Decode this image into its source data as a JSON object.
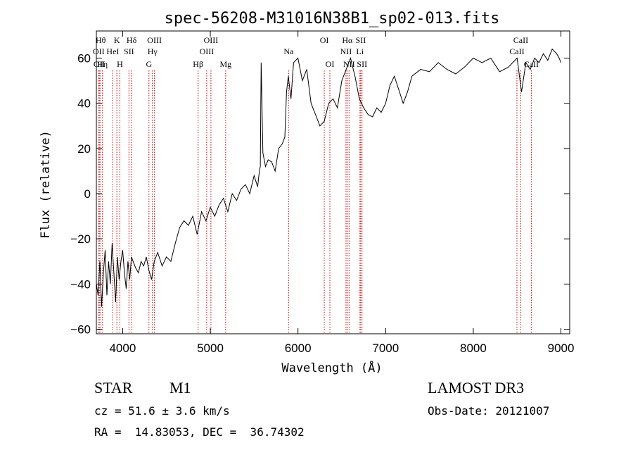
{
  "chart_data": {
    "type": "line",
    "title": "spec-56208-M31016N38B1_sp02-013.fits",
    "xlabel": "Wavelength (Å)",
    "ylabel": "Flux (relative)",
    "xlim": [
      3700,
      9100
    ],
    "ylim": [
      -62,
      72
    ],
    "xticks": [
      4000,
      5000,
      6000,
      7000,
      8000,
      9000
    ],
    "yticks": [
      -60,
      -40,
      -20,
      0,
      20,
      40,
      60
    ],
    "xtick_labels": [
      "4000",
      "5000",
      "6000",
      "7000",
      "8000",
      "9000"
    ],
    "ytick_labels": [
      "−60",
      "−40",
      "−20",
      "0",
      "20",
      "40",
      "60"
    ],
    "line_color": "#000000",
    "marker_color": "#cc0000",
    "series": [
      {
        "name": "flux",
        "x": [
          3700,
          3720,
          3740,
          3760,
          3780,
          3800,
          3820,
          3840,
          3860,
          3880,
          3900,
          3920,
          3940,
          3960,
          3980,
          4000,
          4020,
          4040,
          4060,
          4080,
          4100,
          4120,
          4150,
          4180,
          4210,
          4240,
          4270,
          4300,
          4330,
          4360,
          4400,
          4450,
          4500,
          4550,
          4600,
          4650,
          4700,
          4750,
          4800,
          4850,
          4900,
          4950,
          5000,
          5050,
          5100,
          5150,
          5200,
          5250,
          5300,
          5350,
          5400,
          5450,
          5500,
          5540,
          5560,
          5570,
          5580,
          5600,
          5630,
          5660,
          5700,
          5740,
          5780,
          5820,
          5850,
          5870,
          5890,
          5920,
          5950,
          6000,
          6050,
          6100,
          6150,
          6200,
          6250,
          6300,
          6350,
          6400,
          6450,
          6500,
          6550,
          6600,
          6650,
          6700,
          6750,
          6800,
          6850,
          6900,
          6950,
          7000,
          7050,
          7100,
          7150,
          7200,
          7250,
          7300,
          7400,
          7500,
          7600,
          7700,
          7800,
          7900,
          8000,
          8100,
          8200,
          8300,
          8400,
          8500,
          8550,
          8600,
          8650,
          8700,
          8750,
          8800,
          8850,
          8900,
          8950,
          8980,
          9000
        ],
        "y": [
          -40,
          -45,
          -30,
          -50,
          -35,
          -25,
          -45,
          -30,
          -40,
          -22,
          -35,
          -48,
          -28,
          -38,
          -30,
          -25,
          -35,
          -42,
          -30,
          -38,
          -28,
          -30,
          -33,
          -35,
          -30,
          -32,
          -28,
          -34,
          -38,
          -30,
          -26,
          -32,
          -28,
          -30,
          -22,
          -15,
          -12,
          -14,
          -10,
          -18,
          -8,
          -12,
          -6,
          -10,
          -5,
          -2,
          -8,
          0,
          -3,
          2,
          4,
          0,
          8,
          3,
          10,
          12,
          58,
          18,
          12,
          15,
          14,
          10,
          20,
          22,
          25,
          45,
          52,
          42,
          58,
          60,
          50,
          55,
          40,
          35,
          30,
          32,
          40,
          42,
          38,
          50,
          55,
          60,
          52,
          42,
          38,
          35,
          34,
          38,
          36,
          40,
          48,
          52,
          46,
          40,
          45,
          52,
          55,
          54,
          58,
          55,
          53,
          56,
          60,
          58,
          60,
          54,
          56,
          60,
          45,
          58,
          55,
          60,
          58,
          62,
          59,
          64,
          62,
          60,
          58
        ]
      }
    ],
    "lines": [
      {
        "wl": 3750,
        "label": "Hθ",
        "row": 0
      },
      {
        "wl": 3727,
        "label": "OII",
        "row": 1
      },
      {
        "wl": 3734,
        "label": "OII",
        "row": 2
      },
      {
        "wl": 3770,
        "label": "Hη",
        "row": 2
      },
      {
        "wl": 3888,
        "label": "HeI",
        "row": 1
      },
      {
        "wl": 3934,
        "label": "K",
        "row": 0
      },
      {
        "wl": 3968,
        "label": "H",
        "row": 2
      },
      {
        "wl": 4072,
        "label": "SII",
        "row": 1
      },
      {
        "wl": 4102,
        "label": "Hδ",
        "row": 0
      },
      {
        "wl": 4300,
        "label": "G",
        "row": 2
      },
      {
        "wl": 4340,
        "label": "Hγ",
        "row": 1
      },
      {
        "wl": 4363,
        "label": "OIII",
        "row": 0
      },
      {
        "wl": 4861,
        "label": "Hβ",
        "row": 2
      },
      {
        "wl": 4959,
        "label": "OIII",
        "row": 1
      },
      {
        "wl": 5007,
        "label": "OIII",
        "row": 0
      },
      {
        "wl": 5175,
        "label": "Mg",
        "row": 2
      },
      {
        "wl": 5893,
        "label": "Na",
        "row": 1
      },
      {
        "wl": 6300,
        "label": "OI",
        "row": 0
      },
      {
        "wl": 6364,
        "label": "OI",
        "row": 2
      },
      {
        "wl": 6548,
        "label": "NII",
        "row": 1
      },
      {
        "wl": 6563,
        "label": "Hα",
        "row": 0
      },
      {
        "wl": 6583,
        "label": "NII",
        "row": 2
      },
      {
        "wl": 6707,
        "label": "Li",
        "row": 1
      },
      {
        "wl": 6716,
        "label": "SII",
        "row": 0
      },
      {
        "wl": 6731,
        "label": "SII",
        "row": 2
      },
      {
        "wl": 8498,
        "label": "CaII",
        "row": 1
      },
      {
        "wl": 8542,
        "label": "CaII",
        "row": 0
      },
      {
        "wl": 8662,
        "label": "CaII",
        "row": 2
      }
    ]
  },
  "info": {
    "class": "STAR",
    "subclass": "M1",
    "survey": "LAMOST DR3",
    "cz": "cz = 51.6 ± 3.6 km/s",
    "obs_date": "Obs-Date: 20121007",
    "coords": "RA =  14.83053, DEC =  36.74302"
  }
}
